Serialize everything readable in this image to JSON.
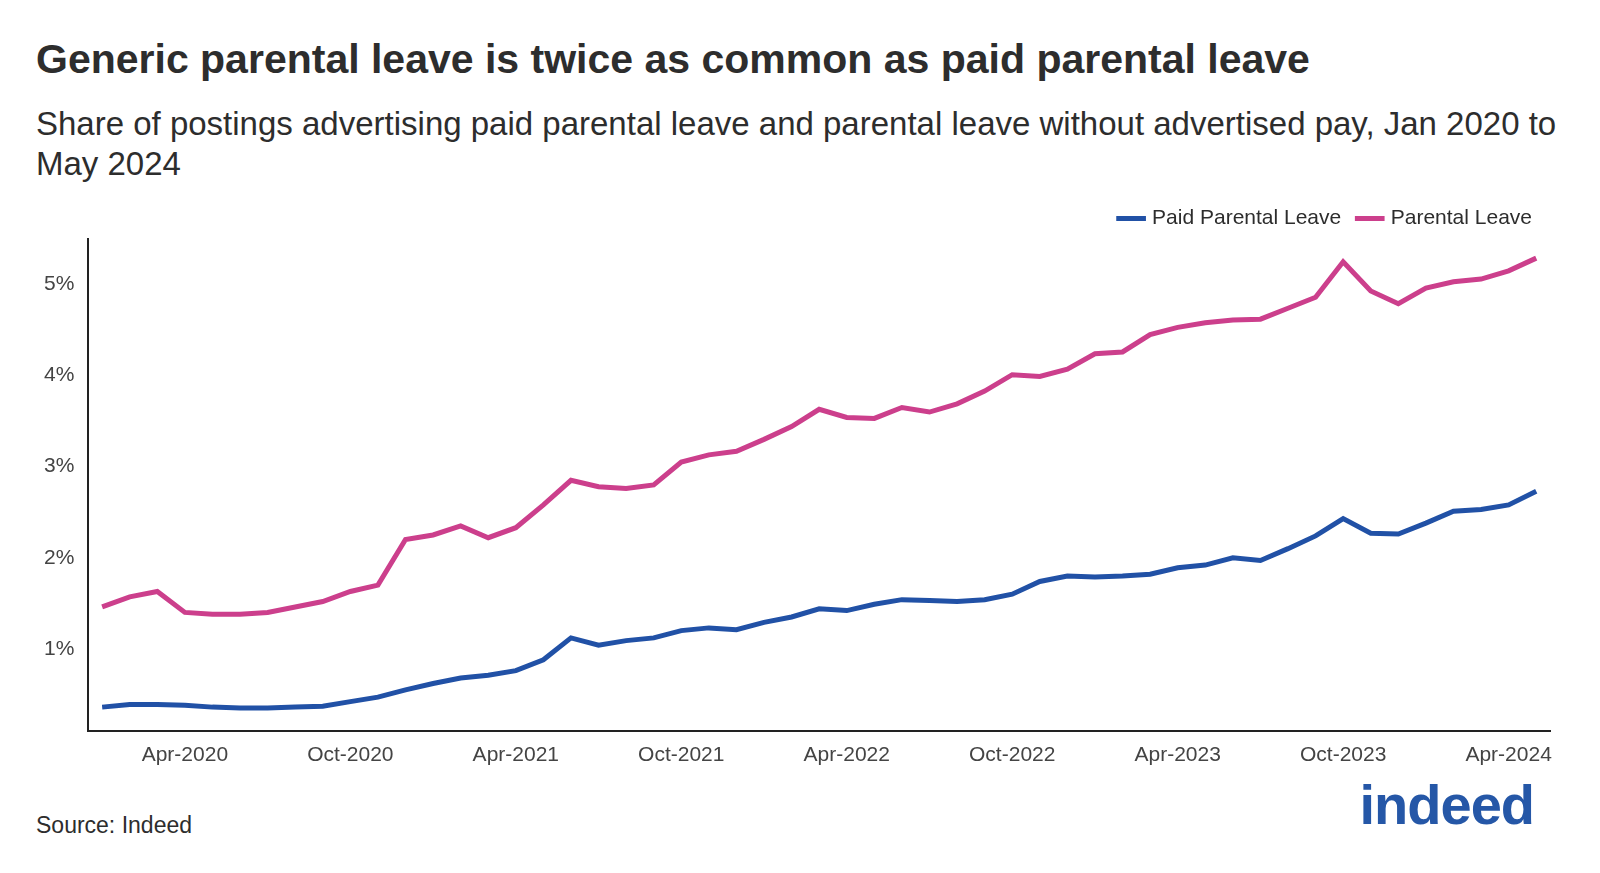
{
  "chart_data": {
    "type": "line",
    "title": "Generic parental leave is twice as common as paid parental leave",
    "subtitle": "Share of postings advertising paid parental leave and parental leave without advertised pay, Jan 2020 to May 2024",
    "source": "Source: Indeed",
    "logo": "indeed",
    "categories": [
      null,
      null,
      null,
      "Apr-2020",
      null,
      null,
      null,
      null,
      null,
      "Oct-2020",
      null,
      null,
      null,
      null,
      null,
      "Apr-2021",
      null,
      null,
      null,
      null,
      null,
      "Oct-2021",
      null,
      null,
      null,
      null,
      null,
      "Apr-2022",
      null,
      null,
      null,
      null,
      null,
      "Oct-2022",
      null,
      null,
      null,
      null,
      null,
      "Apr-2023",
      null,
      null,
      null,
      null,
      null,
      "Oct-2023",
      null,
      null,
      null,
      null,
      null,
      "Apr-2024",
      null
    ],
    "series": [
      {
        "name": "Paid Parental Leave",
        "color": "#2151a6",
        "values": [
          0.36,
          0.39,
          0.39,
          0.38,
          0.36,
          0.35,
          0.35,
          0.36,
          0.37,
          0.42,
          0.47,
          0.55,
          0.62,
          0.68,
          0.71,
          0.76,
          0.88,
          1.12,
          1.04,
          1.09,
          1.12,
          1.2,
          1.23,
          1.21,
          1.29,
          1.35,
          1.44,
          1.42,
          1.49,
          1.54,
          1.53,
          1.52,
          1.54,
          1.6,
          1.74,
          1.8,
          1.79,
          1.8,
          1.82,
          1.89,
          1.92,
          2.0,
          1.97,
          2.1,
          2.24,
          2.43,
          2.27,
          2.26,
          2.38,
          2.51,
          2.53,
          2.58,
          2.73
        ]
      },
      {
        "name": "Parental Leave",
        "color": "#cc3f8c",
        "values": [
          1.46,
          1.57,
          1.63,
          1.4,
          1.38,
          1.38,
          1.4,
          1.46,
          1.52,
          1.63,
          1.7,
          2.2,
          2.25,
          2.35,
          2.22,
          2.33,
          2.58,
          2.85,
          2.78,
          2.76,
          2.8,
          3.05,
          3.13,
          3.17,
          3.3,
          3.44,
          3.63,
          3.54,
          3.53,
          3.65,
          3.6,
          3.69,
          3.83,
          4.01,
          3.99,
          4.07,
          4.24,
          4.26,
          4.45,
          4.53,
          4.58,
          4.61,
          4.62,
          4.74,
          4.86,
          5.25,
          4.93,
          4.79,
          4.96,
          5.03,
          5.06,
          5.15,
          5.29
        ]
      }
    ],
    "ylim": [
      0.1,
      5.5
    ],
    "yticks": [
      {
        "value": 1,
        "label": "1%"
      },
      {
        "value": 2,
        "label": "2%"
      },
      {
        "value": 3,
        "label": "3%"
      },
      {
        "value": 4,
        "label": "4%"
      },
      {
        "value": 5,
        "label": "5%"
      }
    ],
    "grid": false,
    "legend": "top-right"
  }
}
